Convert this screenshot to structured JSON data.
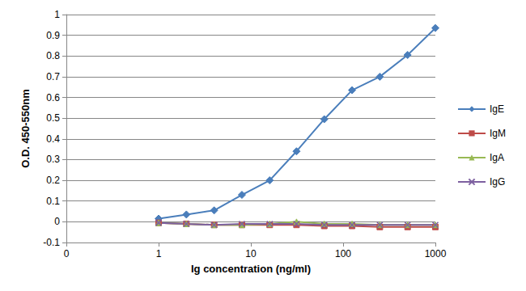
{
  "chart_data": {
    "type": "line",
    "xlabel": "Ig concentration (ng/ml)",
    "ylabel": "O.D. 450-550nm",
    "x": [
      1,
      2,
      4,
      8,
      16,
      31.25,
      62.5,
      125,
      250,
      500,
      1000
    ],
    "series": [
      {
        "name": "IgE",
        "color": "#4a7ebb",
        "marker": "diamond",
        "values": [
          0.015,
          0.035,
          0.055,
          0.13,
          0.2,
          0.34,
          0.495,
          0.635,
          0.7,
          0.805,
          0.935
        ]
      },
      {
        "name": "IgM",
        "color": "#be4b48",
        "marker": "square",
        "values": [
          -0.005,
          -0.01,
          -0.015,
          -0.015,
          -0.015,
          -0.015,
          -0.02,
          -0.02,
          -0.025,
          -0.025,
          -0.025
        ]
      },
      {
        "name": "IgA",
        "color": "#98b954",
        "marker": "triangle",
        "values": [
          -0.005,
          -0.01,
          -0.015,
          -0.015,
          -0.01,
          0.0,
          -0.01,
          -0.01,
          -0.015,
          -0.015,
          -0.015
        ]
      },
      {
        "name": "IgG",
        "color": "#7d60a0",
        "marker": "x",
        "values": [
          -0.005,
          -0.01,
          -0.015,
          -0.01,
          -0.01,
          -0.01,
          -0.015,
          -0.015,
          -0.015,
          -0.015,
          -0.015
        ]
      }
    ],
    "log": "x",
    "xlim": [
      0.1,
      1000
    ],
    "xticks": [
      {
        "value": 0.1,
        "label": "0"
      },
      1,
      10,
      100,
      1000
    ],
    "ylim": [
      -0.1,
      1
    ],
    "yticks": [
      -0.1,
      0,
      0.1,
      0.2,
      0.3,
      0.4,
      0.5,
      0.6,
      0.7,
      0.8,
      0.9,
      1
    ],
    "grid": true,
    "legend": "right"
  }
}
